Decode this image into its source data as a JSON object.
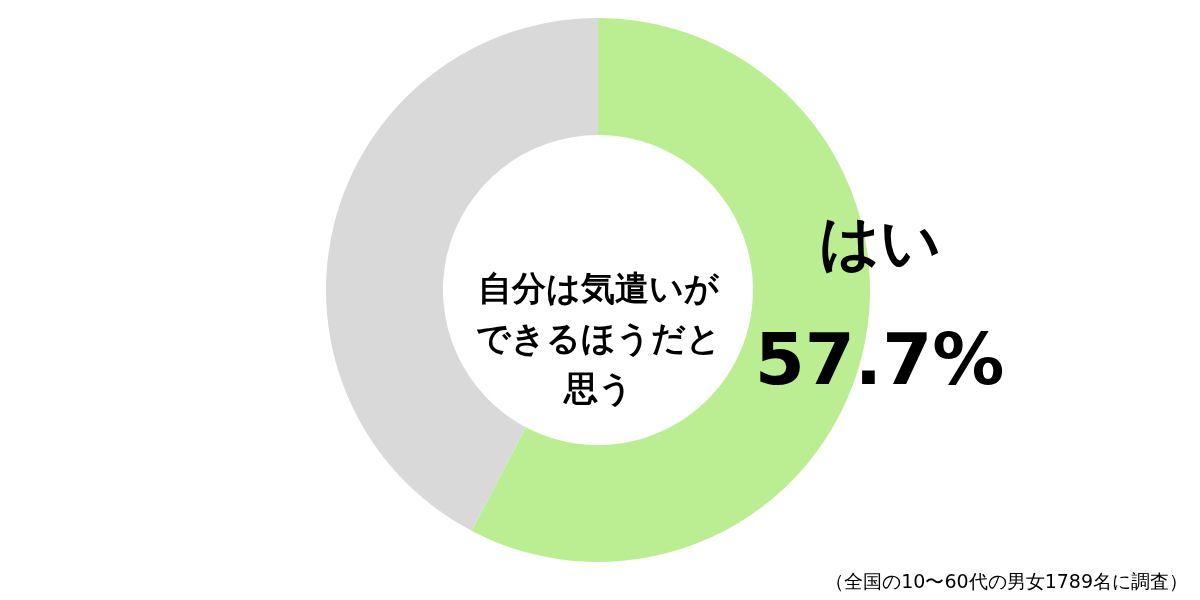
{
  "chart_data": {
    "type": "donut",
    "title": "自分は気遣いができるほうだと思う",
    "categories": [
      "はい",
      null
    ],
    "values": [
      57.7,
      42.3
    ],
    "colors": [
      "#bbee92",
      "#d9d9d9"
    ],
    "value_labels": [
      "57.7%",
      null
    ],
    "annotations": [
      "（全国の10〜60代の男女1789名に調査）"
    ]
  }
}
